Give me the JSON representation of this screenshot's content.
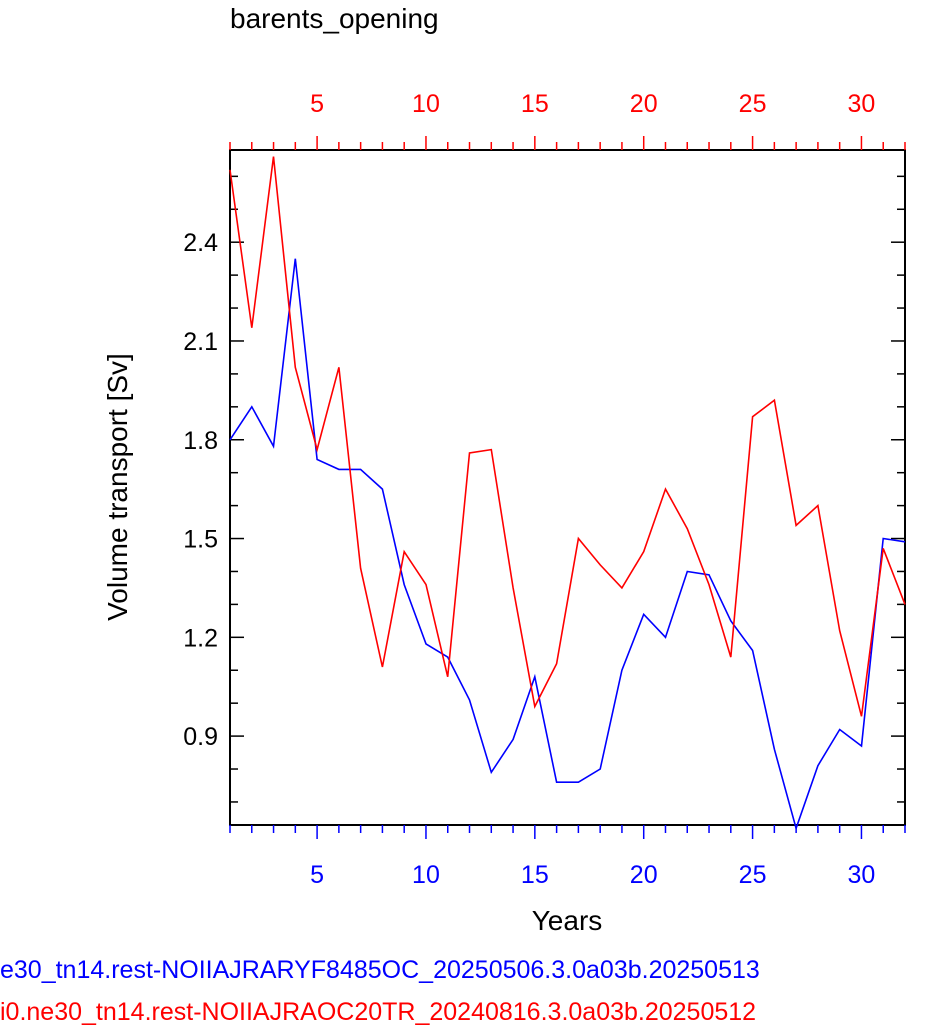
{
  "chart_data": {
    "type": "line",
    "title": "barents_opening",
    "xlabel": "Years",
    "ylabel": "Volume transport [Sv]",
    "xlim": [
      1,
      32
    ],
    "ylim": [
      0.63,
      2.68
    ],
    "x_ticks": [
      5,
      10,
      15,
      20,
      25,
      30
    ],
    "x_tick_labels": [
      "5",
      "10",
      "15",
      "20",
      "25",
      "30"
    ],
    "y_ticks": [
      0.9,
      1.2,
      1.5,
      1.8,
      2.1,
      2.4
    ],
    "y_tick_labels": [
      "0.9",
      "1.2",
      "1.5",
      "1.8",
      "2.1",
      "2.4"
    ],
    "x": [
      1,
      2,
      3,
      4,
      5,
      6,
      7,
      8,
      9,
      10,
      11,
      12,
      13,
      14,
      15,
      16,
      17,
      18,
      19,
      20,
      21,
      22,
      23,
      24,
      25,
      26,
      27,
      28,
      29,
      30,
      31,
      32
    ],
    "series": [
      {
        "name": "e30_tn14.rest-NOIIAJRARYF8485OC_20250506.3.0a03b.20250513",
        "color": "#0000ff",
        "axis": "bottom",
        "values": [
          1.8,
          1.9,
          1.78,
          2.35,
          1.74,
          1.71,
          1.71,
          1.65,
          1.36,
          1.18,
          1.14,
          1.01,
          0.79,
          0.89,
          1.08,
          0.76,
          0.76,
          0.8,
          1.1,
          1.27,
          1.2,
          1.4,
          1.39,
          1.25,
          1.16,
          0.86,
          0.62,
          0.81,
          0.92,
          0.87,
          1.5,
          1.49
        ]
      },
      {
        "name": "i0.ne30_tn14.rest-NOIIAJRAOC20TR_20240816.3.0a03b.20250512",
        "color": "#ff0000",
        "axis": "top",
        "values": [
          2.62,
          2.14,
          2.66,
          2.02,
          1.77,
          2.02,
          1.41,
          1.11,
          1.46,
          1.36,
          1.08,
          1.76,
          1.77,
          1.35,
          0.99,
          1.12,
          1.5,
          1.42,
          1.35,
          1.46,
          1.65,
          1.53,
          1.36,
          1.14,
          1.87,
          1.92,
          1.54,
          1.6,
          1.22,
          0.96,
          1.47,
          1.3
        ]
      }
    ],
    "grid": false,
    "legend": "none"
  },
  "captions": {
    "blue": "e30_tn14.rest-NOIIAJRARYF8485OC_20250506.3.0a03b.20250513",
    "red": "i0.ne30_tn14.rest-NOIIAJRAOC20TR_20240816.3.0a03b.20250512"
  }
}
